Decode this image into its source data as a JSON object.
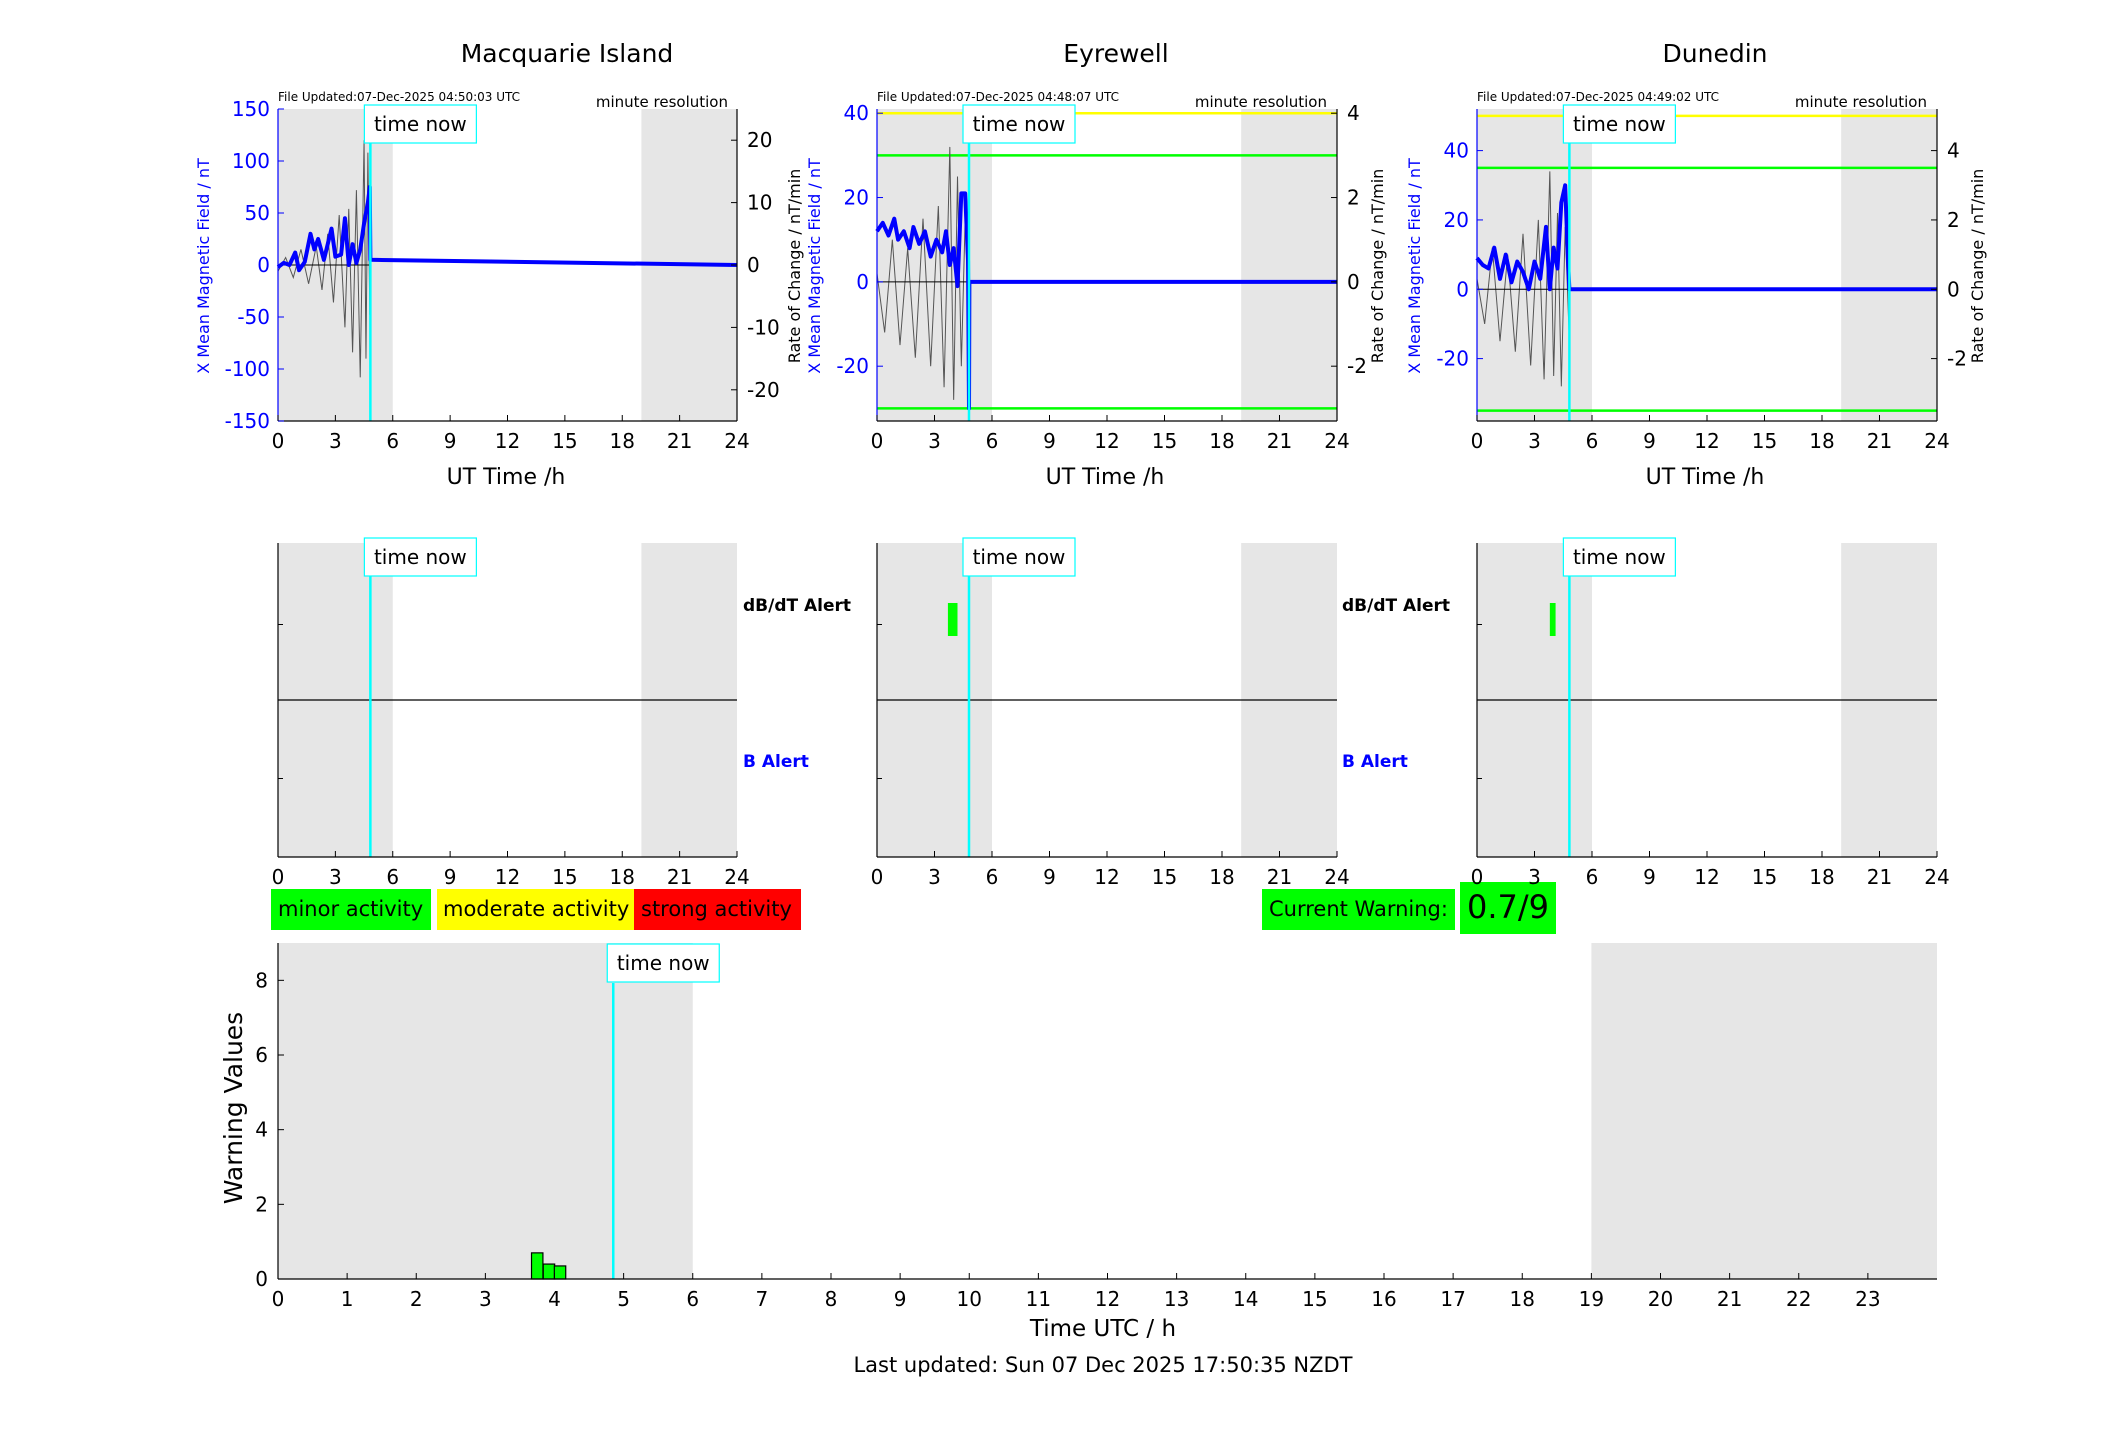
{
  "stations": [
    {
      "name": "Macquarie Island",
      "file_updated": "File Updated:07-Dec-2025 04:50:03 UTC",
      "resolution": "minute resolution",
      "left_ylabel": "X Mean Magnetic Field / nT",
      "right_ylabel": "Rate of Change / nT/min",
      "xlabel": "UT Time /h",
      "left_ylim": [
        -150,
        150
      ],
      "left_yticks": [
        -150,
        -100,
        -50,
        0,
        50,
        100,
        150
      ],
      "right_ylim": [
        -25,
        25
      ],
      "right_yticks": [
        -20,
        -10,
        0,
        10,
        20
      ],
      "thresholds": [],
      "time_now": 4.83,
      "alert_dbdt": null,
      "series_field": [
        [
          0,
          -2
        ],
        [
          0.3,
          2
        ],
        [
          0.6,
          0
        ],
        [
          0.9,
          12
        ],
        [
          1.1,
          -5
        ],
        [
          1.4,
          3
        ],
        [
          1.7,
          30
        ],
        [
          1.9,
          15
        ],
        [
          2.1,
          25
        ],
        [
          2.4,
          5
        ],
        [
          2.6,
          20
        ],
        [
          2.8,
          35
        ],
        [
          3.0,
          8
        ],
        [
          3.3,
          10
        ],
        [
          3.5,
          45
        ],
        [
          3.7,
          0
        ],
        [
          3.9,
          20
        ],
        [
          4.1,
          2
        ],
        [
          4.3,
          15
        ],
        [
          4.5,
          40
        ],
        [
          4.7,
          60
        ],
        [
          4.8,
          75
        ],
        [
          4.83,
          5
        ],
        [
          24,
          0
        ]
      ],
      "series_rate": [
        [
          0,
          -1
        ],
        [
          0.4,
          1.2
        ],
        [
          0.8,
          -2
        ],
        [
          1.2,
          2.5
        ],
        [
          1.6,
          -3
        ],
        [
          2.0,
          3
        ],
        [
          2.3,
          -4
        ],
        [
          2.6,
          5
        ],
        [
          2.9,
          -6
        ],
        [
          3.2,
          8
        ],
        [
          3.5,
          -10
        ],
        [
          3.7,
          9
        ],
        [
          3.9,
          -14
        ],
        [
          4.1,
          12
        ],
        [
          4.3,
          -18
        ],
        [
          4.5,
          20
        ],
        [
          4.6,
          -15
        ],
        [
          4.7,
          18
        ],
        [
          4.8,
          -8
        ]
      ]
    },
    {
      "name": "Eyrewell",
      "file_updated": "File Updated:07-Dec-2025 04:48:07 UTC",
      "resolution": "minute resolution",
      "left_ylabel": "X Mean Magnetic Field / nT",
      "right_ylabel": "Rate of Change / nT/min",
      "xlabel": "UT Time /h",
      "left_ylim": [
        -33,
        41
      ],
      "left_yticks": [
        -20,
        0,
        20,
        40
      ],
      "right_ylim": [
        -3.3,
        4.1
      ],
      "right_yticks": [
        -2,
        0,
        2,
        4
      ],
      "thresholds": [
        {
          "value": 40,
          "color": "#ffff00"
        },
        {
          "value": 30,
          "color": "#00ff00"
        },
        {
          "value": -30,
          "color": "#00ff00"
        }
      ],
      "time_now": 4.8,
      "alert_dbdt": [
        3.7,
        4.2
      ],
      "series_field": [
        [
          0,
          12
        ],
        [
          0.3,
          14
        ],
        [
          0.6,
          11
        ],
        [
          0.9,
          15
        ],
        [
          1.1,
          10
        ],
        [
          1.4,
          12
        ],
        [
          1.7,
          8
        ],
        [
          1.9,
          13
        ],
        [
          2.2,
          9
        ],
        [
          2.5,
          12
        ],
        [
          2.8,
          6
        ],
        [
          3.1,
          10
        ],
        [
          3.4,
          7
        ],
        [
          3.6,
          12
        ],
        [
          3.8,
          4
        ],
        [
          4.0,
          8
        ],
        [
          4.2,
          -1
        ],
        [
          4.4,
          21
        ],
        [
          4.6,
          21
        ],
        [
          4.75,
          5
        ],
        [
          4.8,
          -30
        ],
        [
          4.82,
          0
        ],
        [
          24,
          0
        ]
      ],
      "series_rate": [
        [
          0,
          0.2
        ],
        [
          0.4,
          -1.2
        ],
        [
          0.8,
          1.0
        ],
        [
          1.2,
          -1.5
        ],
        [
          1.6,
          0.8
        ],
        [
          2.0,
          -1.8
        ],
        [
          2.4,
          1.5
        ],
        [
          2.8,
          -2
        ],
        [
          3.2,
          1.8
        ],
        [
          3.5,
          -2.5
        ],
        [
          3.8,
          3.2
        ],
        [
          4.0,
          -2.8
        ],
        [
          4.2,
          2.5
        ],
        [
          4.4,
          -2
        ],
        [
          4.6,
          1.5
        ],
        [
          4.8,
          -1
        ]
      ]
    },
    {
      "name": "Dunedin",
      "file_updated": "File Updated:07-Dec-2025 04:49:02 UTC",
      "resolution": "minute resolution",
      "left_ylabel": "X Mean Magnetic Field / nT",
      "right_ylabel": "Rate of Change / nT/min",
      "xlabel": "UT Time /h",
      "left_ylim": [
        -38,
        52
      ],
      "left_yticks": [
        -20,
        0,
        20,
        40
      ],
      "right_ylim": [
        -3.8,
        5.2
      ],
      "right_yticks": [
        -2,
        0,
        2,
        4
      ],
      "thresholds": [
        {
          "value": 50,
          "color": "#ffff00"
        },
        {
          "value": 35,
          "color": "#00ff00"
        },
        {
          "value": -35,
          "color": "#00ff00"
        }
      ],
      "time_now": 4.82,
      "alert_dbdt": [
        3.8,
        4.1
      ],
      "series_field": [
        [
          0,
          9
        ],
        [
          0.3,
          7
        ],
        [
          0.6,
          6
        ],
        [
          0.9,
          12
        ],
        [
          1.2,
          3
        ],
        [
          1.5,
          10
        ],
        [
          1.8,
          2
        ],
        [
          2.1,
          8
        ],
        [
          2.4,
          5
        ],
        [
          2.7,
          0
        ],
        [
          3.0,
          8
        ],
        [
          3.3,
          3
        ],
        [
          3.6,
          18
        ],
        [
          3.8,
          0
        ],
        [
          4.0,
          12
        ],
        [
          4.2,
          6
        ],
        [
          4.4,
          25
        ],
        [
          4.6,
          30
        ],
        [
          4.75,
          8
        ],
        [
          4.82,
          0
        ],
        [
          24,
          0
        ]
      ],
      "series_rate": [
        [
          0,
          0.3
        ],
        [
          0.4,
          -1.0
        ],
        [
          0.8,
          1.2
        ],
        [
          1.2,
          -1.5
        ],
        [
          1.6,
          1.0
        ],
        [
          2.0,
          -1.8
        ],
        [
          2.4,
          1.6
        ],
        [
          2.8,
          -2.2
        ],
        [
          3.2,
          2.0
        ],
        [
          3.5,
          -2.6
        ],
        [
          3.8,
          3.4
        ],
        [
          4.0,
          -2.5
        ],
        [
          4.2,
          2.2
        ],
        [
          4.4,
          -2.8
        ],
        [
          4.6,
          1.8
        ],
        [
          4.8,
          -1.2
        ]
      ]
    }
  ],
  "alerts": {
    "dbdt_label": "dB/dT Alert",
    "b_label": "B Alert",
    "time_now_label": "time now"
  },
  "legend": {
    "minor": "minor activity",
    "moderate": "moderate activity",
    "strong": "strong activity"
  },
  "current_warning": {
    "label": "Current Warning:",
    "value": "0.7/9"
  },
  "chart_data": {
    "type": "bar",
    "ylabel": "Warning Values",
    "xlabel": "Time UTC / h",
    "xlim": [
      0,
      24
    ],
    "ylim": [
      0,
      9
    ],
    "yticks": [
      0,
      2,
      4,
      6,
      8
    ],
    "xticks": [
      0,
      1,
      2,
      3,
      4,
      5,
      6,
      7,
      8,
      9,
      10,
      11,
      12,
      13,
      14,
      15,
      16,
      17,
      18,
      19,
      20,
      21,
      22,
      23
    ],
    "night_shading": [
      [
        0,
        6
      ],
      [
        19,
        24
      ]
    ],
    "time_now": 4.85,
    "bars": [
      {
        "x": 3.75,
        "value": 0.7
      },
      {
        "x": 3.92,
        "value": 0.4
      },
      {
        "x": 4.08,
        "value": 0.35
      }
    ]
  },
  "station_chart_xticks": [
    0,
    3,
    6,
    9,
    12,
    15,
    18,
    21,
    24
  ],
  "station_night_shading": [
    [
      0,
      6
    ],
    [
      19,
      24
    ]
  ],
  "footer": "Last updated: Sun 07 Dec 2025 17:50:35 NZDT",
  "colors": {
    "field": "#0000ff",
    "rate": "#555555",
    "time_now": "#00ffff",
    "night": "#e6e6e6",
    "minor": "#00ff00",
    "moderate": "#ffff00",
    "strong": "#ff0000"
  }
}
